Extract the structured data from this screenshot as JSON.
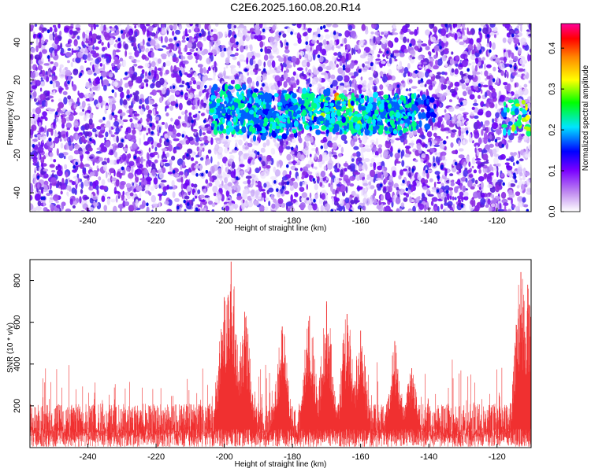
{
  "title": "C2E6.2025.160.08.20.R14",
  "chart_data": [
    {
      "type": "heatmap",
      "title": "C2E6.2025.160.08.20.R14",
      "xlabel": "Height of straight line (km)",
      "ylabel": "Frequency (Hz)",
      "xlim": [
        -257,
        -110
      ],
      "ylim": [
        -50,
        50
      ],
      "x_ticks": [
        -240,
        -220,
        -200,
        -180,
        -160,
        -140,
        -120
      ],
      "y_ticks": [
        -40,
        -20,
        0,
        20,
        40
      ],
      "colorbar": {
        "label": "Normalized spectral amplitude",
        "range": [
          0,
          0.46
        ],
        "ticks": [
          0,
          0.1,
          0.2,
          0.3,
          0.4
        ],
        "colors": [
          "#ffffff",
          "#8a2be2",
          "#0000ff",
          "#00e5ff",
          "#00ff00",
          "#ffff00",
          "#ff0000",
          "#ff00aa"
        ]
      },
      "signal_band": {
        "center_frequency": 2,
        "clusters": [
          {
            "x": -197,
            "y": 8,
            "amp": 0.22
          },
          {
            "x": -192,
            "y": 5,
            "amp": 0.2
          },
          {
            "x": -186,
            "y": -2,
            "amp": 0.15
          },
          {
            "x": -176,
            "y": 6,
            "amp": 0.18
          },
          {
            "x": -169,
            "y": 3,
            "amp": 0.4
          },
          {
            "x": -163,
            "y": 0,
            "amp": 0.25
          },
          {
            "x": -152,
            "y": 1,
            "amp": 0.2
          },
          {
            "x": -145,
            "y": 2,
            "amp": 0.12
          },
          {
            "x": -111,
            "y": 0,
            "amp": 0.3
          }
        ]
      },
      "grid": false
    },
    {
      "type": "area",
      "xlabel": "Height of straight line (km)",
      "ylabel": "SNR (10 * v/v)",
      "xlim": [
        -257,
        -110
      ],
      "ylim": [
        0,
        900
      ],
      "x_ticks": [
        -240,
        -220,
        -200,
        -180,
        -160,
        -140,
        -120
      ],
      "y_ticks": [
        200,
        400,
        600,
        800
      ],
      "color": "#f03030",
      "baseline_mean": 130,
      "peaks": [
        {
          "x": -198,
          "y": 890
        },
        {
          "x": -200,
          "y": 720
        },
        {
          "x": -194,
          "y": 650
        },
        {
          "x": -183,
          "y": 580
        },
        {
          "x": -175,
          "y": 630
        },
        {
          "x": -170,
          "y": 700
        },
        {
          "x": -164,
          "y": 640
        },
        {
          "x": -160,
          "y": 560
        },
        {
          "x": -150,
          "y": 510
        },
        {
          "x": -145,
          "y": 380
        },
        {
          "x": -113,
          "y": 840
        },
        {
          "x": -111,
          "y": 780
        }
      ],
      "grid": false
    }
  ]
}
